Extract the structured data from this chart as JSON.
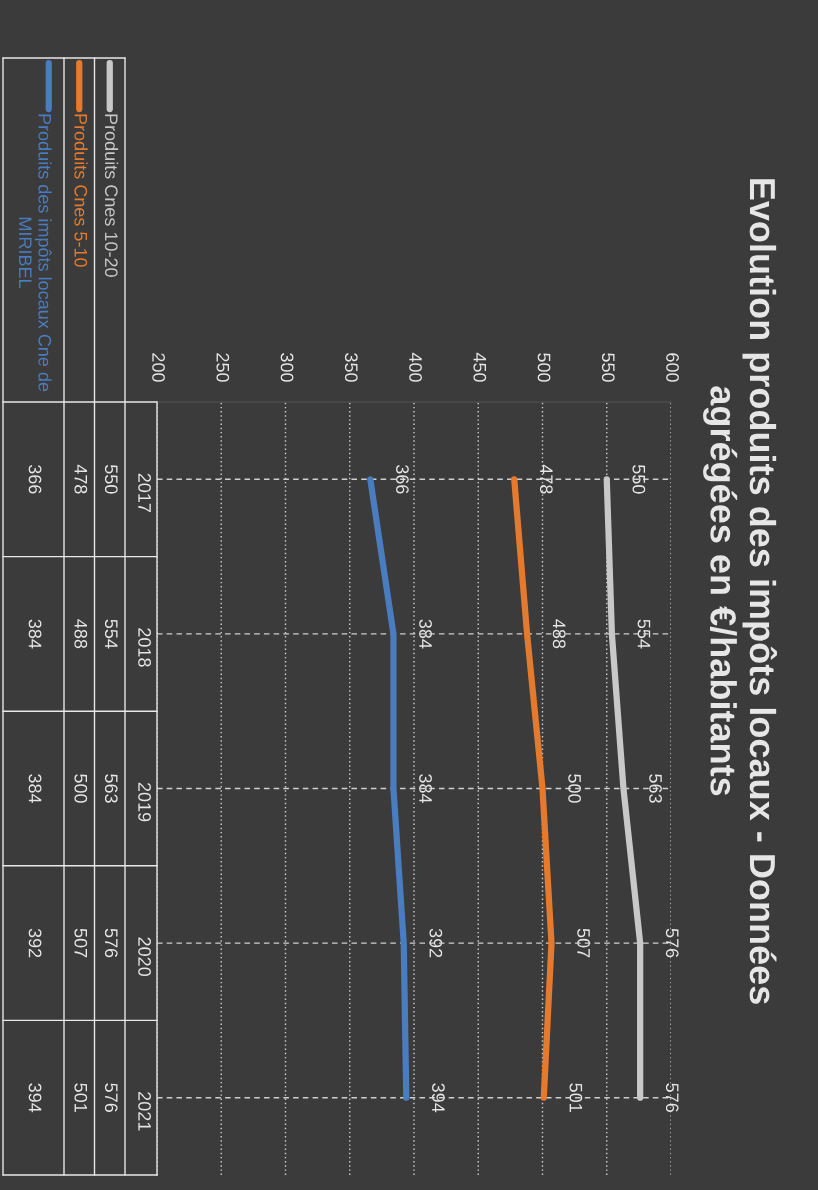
{
  "chart_data": {
    "type": "line",
    "orientation": "horizontal",
    "title": "Evolution produits des impôts locaux - Données\nagrégées en €/habitants",
    "categories": [
      "2017",
      "2018",
      "2019",
      "2020",
      "2021"
    ],
    "series": [
      {
        "name": "Produits Cnes 10-20",
        "color": "#c8c8c8",
        "values": [
          550,
          554,
          563,
          576,
          576
        ]
      },
      {
        "name": "Produits Cnes 5-10",
        "color": "#e47a2e",
        "values": [
          478,
          488,
          500,
          507,
          501
        ]
      },
      {
        "name": "Produits des impôts locaux Cne de\nMIRIBEL",
        "color": "#4a7cc0",
        "values": [
          366,
          384,
          384,
          392,
          394
        ]
      }
    ],
    "annotations": [
      {
        "text": "550",
        "x": 550,
        "y": "2017"
      },
      {
        "text": "554",
        "x": 554,
        "y": "2018"
      },
      {
        "text": "563",
        "x": 563,
        "y": "2019"
      },
      {
        "text": "576",
        "x": 576,
        "y": "2020"
      },
      {
        "text": "478",
        "x": 478,
        "y": "2017"
      },
      {
        "text": "488",
        "x": 488,
        "y": "2018"
      },
      {
        "text": "500",
        "x": 500,
        "y": "2019"
      },
      {
        "text": "507",
        "x": 507,
        "y": "2020"
      },
      {
        "text": "366",
        "x": 366,
        "y": "2017"
      },
      {
        "text": "384",
        "x": 384,
        "y": "2018"
      },
      {
        "text": "384",
        "x": 384,
        "y": "2019"
      },
      {
        "text": "392",
        "x": 392,
        "y": "2020"
      },
      "576",
      "501",
      "394"
    ],
    "xlim": [
      200,
      600
    ],
    "xticks": [
      200,
      250,
      300,
      350,
      400,
      450,
      500,
      550,
      600
    ],
    "grid": true,
    "legend": "top left",
    "data_labels": true,
    "line_style": "solid"
  }
}
